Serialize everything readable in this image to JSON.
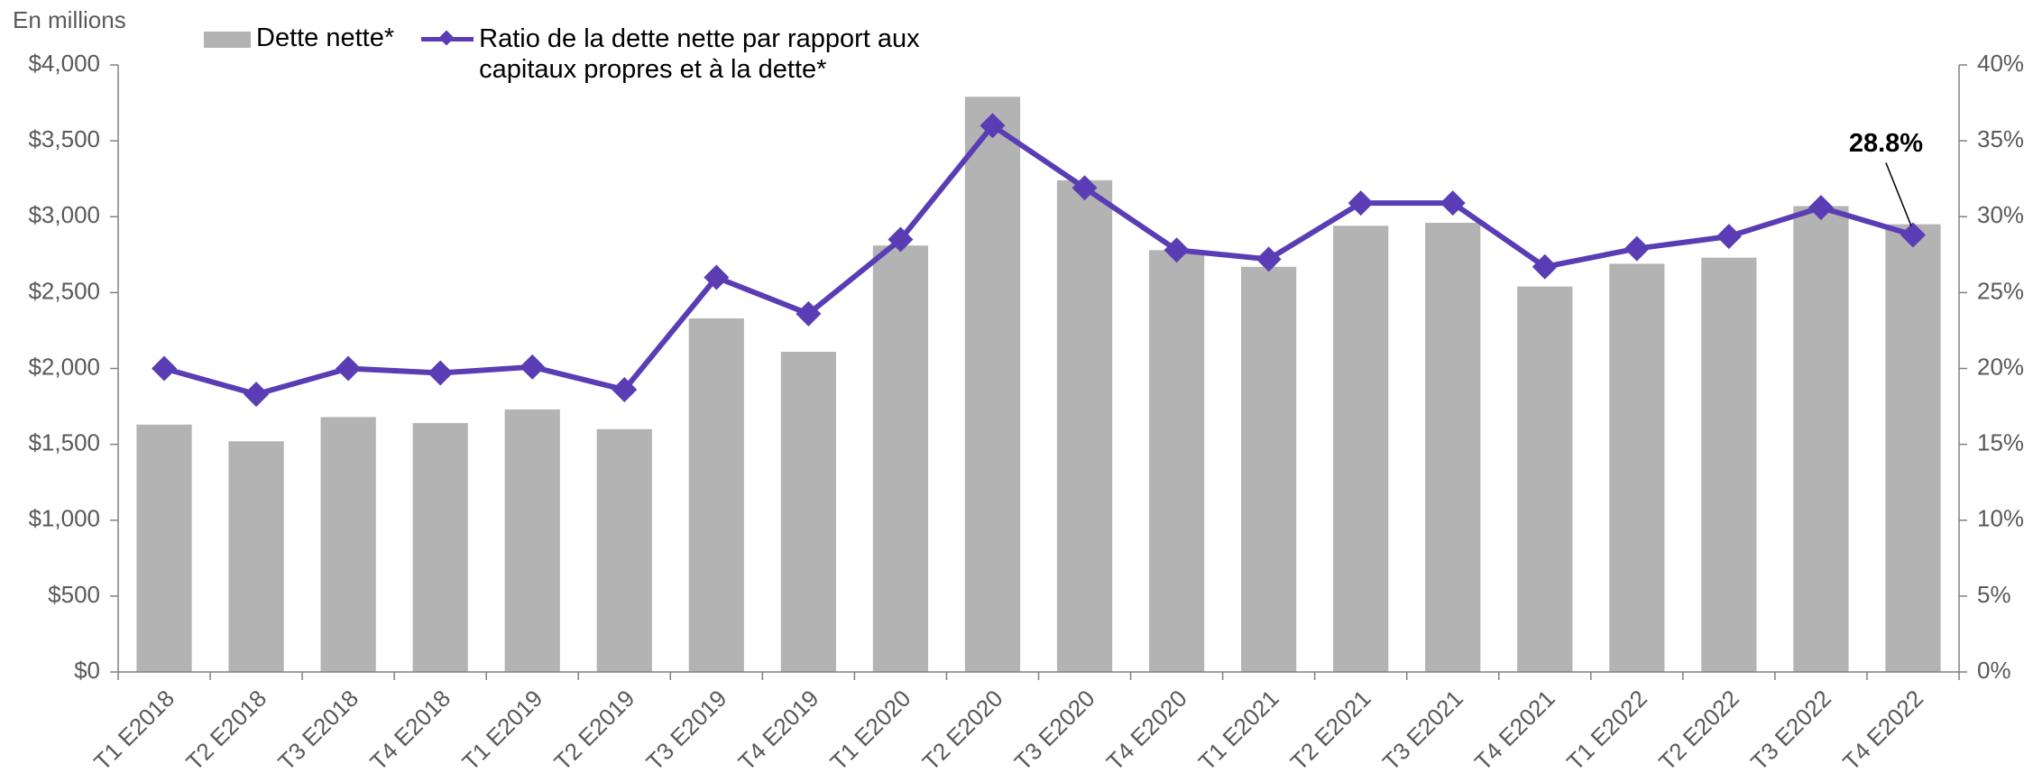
{
  "chart_data": {
    "type": "bar_line",
    "y_label": "En millions",
    "categories": [
      "T1 E2018",
      "T2 E2018",
      "T3 E2018",
      "T4 E2018",
      "T1 E2019",
      "T2 E2019",
      "T3 E2019",
      "T4 E2019",
      "T1 E2020",
      "T2 E2020",
      "T3 E2020",
      "T4 E2020",
      "T1 E2021",
      "T2 E2021",
      "T3 E2021",
      "T4 E2021",
      "T1 E2022",
      "T2 E2022",
      "T3 E2022",
      "T4 E2022"
    ],
    "series": [
      {
        "name": "Dette nette*",
        "kind": "bar",
        "color": "#b3b3b3",
        "values": [
          1630,
          1520,
          1680,
          1640,
          1730,
          1600,
          2330,
          2110,
          2810,
          3790,
          3240,
          2780,
          2670,
          2940,
          2960,
          2540,
          2690,
          2730,
          3070,
          2950
        ]
      },
      {
        "name": "Ratio de la dette nette par rapport aux capitaux propres et à la dette*",
        "kind": "line",
        "axis": "y2",
        "color": "#5a3db5",
        "values": [
          20.0,
          18.3,
          20.0,
          19.7,
          20.1,
          18.6,
          26.0,
          23.6,
          28.5,
          36.0,
          31.9,
          27.8,
          27.2,
          30.9,
          30.9,
          26.7,
          27.9,
          28.7,
          30.6,
          28.8
        ],
        "value_labels": [
          null,
          null,
          null,
          null,
          null,
          null,
          null,
          null,
          null,
          null,
          null,
          null,
          null,
          null,
          null,
          null,
          null,
          null,
          null,
          "28.8%"
        ]
      }
    ],
    "ylim": [
      0,
      4000
    ],
    "yticks": [
      {
        "value": 0,
        "label": "$0"
      },
      {
        "value": 500,
        "label": "$500"
      },
      {
        "value": 1000,
        "label": "$1,000"
      },
      {
        "value": 1500,
        "label": "$1,500"
      },
      {
        "value": 2000,
        "label": "$2,000"
      },
      {
        "value": 2500,
        "label": "$2,500"
      },
      {
        "value": 3000,
        "label": "$3,000"
      },
      {
        "value": 3500,
        "label": "$3,500"
      },
      {
        "value": 4000,
        "label": "$4,000"
      }
    ],
    "y2lim": [
      0,
      40
    ],
    "y2ticks": [
      {
        "value": 0,
        "label": "0%"
      },
      {
        "value": 5,
        "label": "5%"
      },
      {
        "value": 10,
        "label": "10%"
      },
      {
        "value": 15,
        "label": "15%"
      },
      {
        "value": 20,
        "label": "20%"
      },
      {
        "value": 25,
        "label": "25%"
      },
      {
        "value": 30,
        "label": "30%"
      },
      {
        "value": 35,
        "label": "35%"
      },
      {
        "value": 40,
        "label": "40%"
      }
    ],
    "grid": false
  }
}
